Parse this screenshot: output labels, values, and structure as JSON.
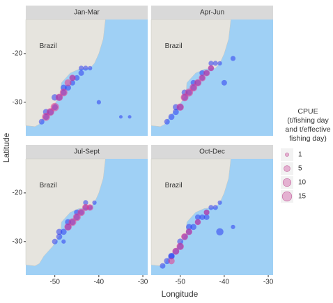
{
  "chart_data": {
    "type": "scatter",
    "xlabel": "Longitude",
    "ylabel": "Latitude",
    "map_label": "Brazil",
    "xlim": [
      -56.6,
      -28.9
    ],
    "ylim": [
      -36.9,
      -13
    ],
    "xticks": [
      -50,
      -40,
      -30
    ],
    "yticks": [
      -20,
      -30
    ],
    "legend": {
      "title": "CPUE\n(t/fishing day\nand t/effective\nfishing day)",
      "sizes": [
        1,
        5,
        10,
        15
      ],
      "color": "#e0a0c8"
    },
    "facets": [
      {
        "title": "Jan-Mar",
        "series": [
          {
            "color": "#2b3cf0",
            "x": [
              -53,
              -52,
              -51,
              -50,
              -49,
              -48,
              -47,
              -46,
              -45,
              -44,
              -43,
              -42,
              -52,
              -50,
              -48,
              -46,
              -44,
              -40,
              -35,
              -33
            ],
            "y": [
              -34,
              -33,
              -32,
              -31,
              -29,
              -28,
              -27,
              -26,
              -25,
              -24,
              -23,
              -23,
              -32,
              -29,
              -27,
              -25,
              -23,
              -30,
              -33,
              -33
            ],
            "size": [
              4,
              5,
              6,
              5,
              6,
              5,
              5,
              4,
              4,
              4,
              3,
              2,
              5,
              6,
              5,
              4,
              3,
              2,
              1,
              1
            ]
          },
          {
            "color": "#e8388a",
            "x": [
              -52,
              -51,
              -50,
              -49,
              -48,
              -47,
              -46
            ],
            "y": [
              -33,
              -32,
              -31,
              -29,
              -28,
              -26,
              -25
            ],
            "size": [
              10,
              9,
              11,
              8,
              9,
              7,
              6
            ]
          }
        ]
      },
      {
        "title": "Apr-Jun",
        "series": [
          {
            "color": "#2b3cf0",
            "x": [
              -53,
              -52,
              -51,
              -50,
              -49,
              -48,
              -47,
              -46,
              -45,
              -44,
              -43,
              -42,
              -41,
              -51,
              -49,
              -47,
              -45,
              -43,
              -40,
              -38
            ],
            "y": [
              -34,
              -33,
              -32,
              -31,
              -29,
              -28,
              -27,
              -26,
              -25,
              -24,
              -23,
              -22,
              -22,
              -31,
              -28,
              -26,
              -24,
              -22,
              -26,
              -21
            ],
            "size": [
              4,
              5,
              5,
              6,
              6,
              5,
              5,
              5,
              4,
              4,
              4,
              3,
              2,
              5,
              5,
              4,
              4,
              3,
              4,
              3
            ]
          },
          {
            "color": "#e8388a",
            "x": [
              -50,
              -49,
              -48,
              -47,
              -46,
              -45,
              -44,
              -43
            ],
            "y": [
              -31,
              -29,
              -28,
              -27,
              -26,
              -25,
              -24,
              -23
            ],
            "size": [
              8,
              9,
              10,
              9,
              8,
              7,
              6,
              5
            ]
          }
        ]
      },
      {
        "title": "Jul-Sept",
        "series": [
          {
            "color": "#2b3cf0",
            "x": [
              -50,
              -49,
              -48,
              -47,
              -46,
              -45,
              -44,
              -43,
              -42,
              -41,
              -49,
              -47,
              -45,
              -43,
              -48
            ],
            "y": [
              -30,
              -29,
              -28,
              -27,
              -26,
              -25,
              -24,
              -23,
              -23,
              -22,
              -28,
              -26,
              -24,
              -22,
              -30
            ],
            "size": [
              4,
              5,
              5,
              6,
              5,
              5,
              4,
              4,
              3,
              2,
              5,
              5,
              4,
              3,
              2
            ]
          },
          {
            "color": "#e8388a",
            "x": [
              -47,
              -46,
              -45,
              -44,
              -43,
              -42
            ],
            "y": [
              -27,
              -26,
              -25,
              -24,
              -23,
              -23
            ],
            "size": [
              8,
              9,
              9,
              8,
              7,
              6
            ]
          }
        ]
      },
      {
        "title": "Oct-Dec",
        "series": [
          {
            "color": "#2b3cf0",
            "x": [
              -54,
              -53,
              -52,
              -51,
              -50,
              -49,
              -48,
              -47,
              -46,
              -45,
              -44,
              -43,
              -42,
              -41,
              -52,
              -50,
              -48,
              -46,
              -44,
              -41,
              -38
            ],
            "y": [
              -35,
              -34,
              -33,
              -32,
              -31,
              -29,
              -28,
              -27,
              -26,
              -25,
              -24,
              -23,
              -23,
              -22,
              -33,
              -30,
              -27,
              -25,
              -25,
              -28,
              -27
            ],
            "size": [
              4,
              5,
              5,
              6,
              6,
              5,
              5,
              5,
              4,
              4,
              4,
              3,
              3,
              2,
              6,
              5,
              5,
              4,
              4,
              8,
              2
            ]
          },
          {
            "color": "#e8388a",
            "x": [
              -52,
              -51,
              -50,
              -49,
              -48,
              -46,
              -44
            ],
            "y": [
              -34,
              -32,
              -31,
              -29,
              -28,
              -26,
              -24
            ],
            "size": [
              6,
              7,
              8,
              7,
              6,
              5,
              4
            ]
          }
        ]
      }
    ]
  }
}
